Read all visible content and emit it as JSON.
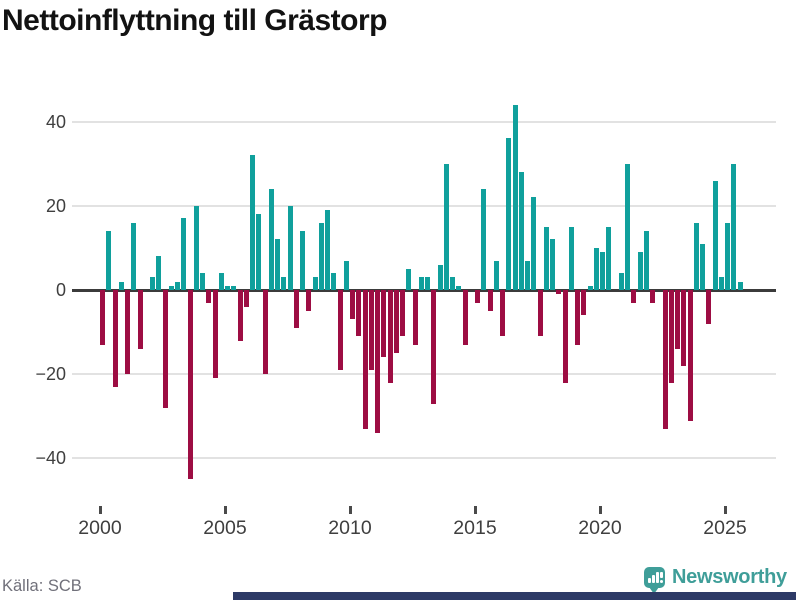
{
  "title": "Nettoinflyttning till Grästorp",
  "source": "Källa: SCB",
  "branding": {
    "logo_text": "Newsworthy"
  },
  "colors": {
    "positive_bar": "#10a09c",
    "negative_bar": "#9d0d43",
    "grid": "#e2e2e2",
    "zero_line": "#3b3b3b",
    "axis_text": "#3f3f3f",
    "title_text": "#121212",
    "source_text": "#70707a",
    "brand_teal": "#3f9e99",
    "scrollbar": "#2d3a66"
  },
  "chart_data": {
    "type": "bar",
    "title": "Nettoinflyttning till Grästorp",
    "frequency": "quarterly",
    "start_year": 2000,
    "end_period": "2025 Q3",
    "x_tick_labels": [
      "2000",
      "2005",
      "2010",
      "2015",
      "2020",
      "2025"
    ],
    "y_tick_labels": [
      "40",
      "20",
      "0",
      "−20",
      "−40"
    ],
    "y_ticks": [
      40,
      20,
      0,
      -20,
      -40
    ],
    "ylim": [
      -48,
      45
    ],
    "grid": "horizontal",
    "values": [
      -13,
      14,
      -23,
      2,
      -20,
      16,
      -14,
      0,
      3,
      8,
      -28,
      1,
      2,
      17,
      -45,
      20,
      4,
      -3,
      -21,
      4,
      1,
      1,
      -12,
      -4,
      32,
      18,
      -20,
      24,
      12,
      3,
      20,
      -9,
      14,
      -5,
      3,
      16,
      19,
      4,
      -19,
      7,
      -7,
      -11,
      -33,
      -19,
      -34,
      -16,
      -22,
      -15,
      -11,
      5,
      -13,
      3,
      3,
      -27,
      6,
      30,
      3,
      1,
      -13,
      0,
      -3,
      24,
      -5,
      7,
      -11,
      36,
      44,
      28,
      7,
      22,
      -11,
      15,
      12,
      -1,
      -22,
      15,
      -13,
      -6,
      1,
      10,
      9,
      15,
      0,
      4,
      30,
      -3,
      9,
      14,
      -3,
      0,
      -33,
      -22,
      -14,
      -18,
      -31,
      16,
      11,
      -8,
      26,
      3,
      16,
      30,
      2
    ]
  }
}
